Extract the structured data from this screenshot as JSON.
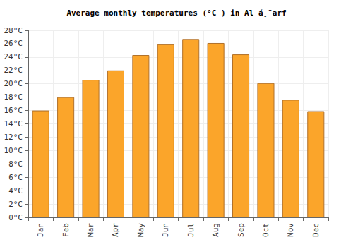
{
  "chart_data": {
    "type": "bar",
    "title": "Average monthly temperatures (°C ) in Al á¸¨arf",
    "categories": [
      "Jan",
      "Feb",
      "Mar",
      "Apr",
      "May",
      "Jun",
      "Jul",
      "Aug",
      "Sep",
      "Oct",
      "Nov",
      "Dec"
    ],
    "values": [
      16.0,
      18.0,
      20.6,
      22.0,
      24.3,
      25.9,
      26.7,
      26.1,
      24.4,
      20.1,
      17.6,
      15.9
    ],
    "color": "#fba52a",
    "ylim": [
      0,
      28
    ],
    "yticks": [
      {
        "value": 0,
        "label": "0°C"
      },
      {
        "value": 2,
        "label": "2°C"
      },
      {
        "value": 4,
        "label": "4°C"
      },
      {
        "value": 6,
        "label": "6°C"
      },
      {
        "value": 8,
        "label": "8°C"
      },
      {
        "value": 10,
        "label": "10°C"
      },
      {
        "value": 12,
        "label": "12°C"
      },
      {
        "value": 14,
        "label": "14°C"
      },
      {
        "value": 16,
        "label": "16°C"
      },
      {
        "value": 18,
        "label": "18°C"
      },
      {
        "value": 20,
        "label": "20°C"
      },
      {
        "value": 22,
        "label": "22°C"
      },
      {
        "value": 24,
        "label": "24°C"
      },
      {
        "value": 26,
        "label": "26°C"
      },
      {
        "value": 28,
        "label": "28°C"
      }
    ],
    "grid": true
  }
}
